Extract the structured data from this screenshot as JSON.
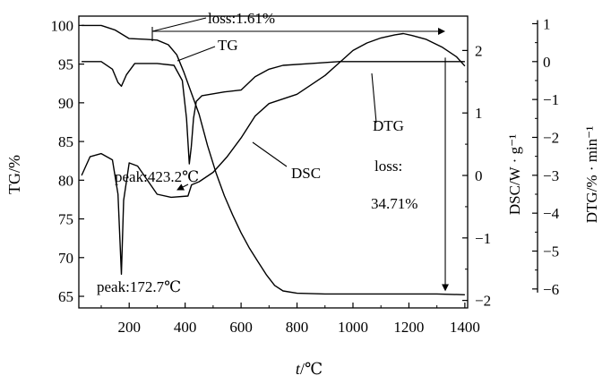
{
  "chart_data": {
    "type": "line",
    "xlabel_var": "t",
    "xlabel_unit": "/℃",
    "x_ticks": [
      200,
      400,
      600,
      800,
      1000,
      1200,
      1400
    ],
    "xlim": [
      20,
      1410
    ],
    "axes": {
      "tg": {
        "label": "TG/%",
        "ticks": [
          65,
          70,
          75,
          80,
          85,
          90,
          95,
          100
        ],
        "ylim": [
          63.5,
          101.2
        ]
      },
      "dsc": {
        "label": "DSC/W · g⁻¹",
        "ticks": [
          -2,
          -1,
          0,
          1,
          2
        ],
        "ylim": [
          -2.12,
          2.55
        ]
      },
      "dtg": {
        "label": "DTG/% · min⁻¹",
        "ticks": [
          -6,
          -5,
          -4,
          -3,
          -2,
          -1,
          0,
          1
        ],
        "ylim": [
          -6.5,
          1.2
        ]
      }
    },
    "series": [
      {
        "name": "TG",
        "axis": "tg",
        "points": [
          [
            30,
            100
          ],
          [
            100,
            100
          ],
          [
            150,
            99.4
          ],
          [
            200,
            98.3
          ],
          [
            260,
            98.2
          ],
          [
            300,
            98.1
          ],
          [
            340,
            97.5
          ],
          [
            370,
            96.2
          ],
          [
            395,
            94
          ],
          [
            420,
            91.5
          ],
          [
            450,
            88.5
          ],
          [
            480,
            84.5
          ],
          [
            510,
            81
          ],
          [
            540,
            78
          ],
          [
            570,
            75.5
          ],
          [
            600,
            73.2
          ],
          [
            630,
            71.2
          ],
          [
            660,
            69.5
          ],
          [
            690,
            67.8
          ],
          [
            720,
            66.4
          ],
          [
            750,
            65.7
          ],
          [
            800,
            65.4
          ],
          [
            900,
            65.3
          ],
          [
            1000,
            65.3
          ],
          [
            1100,
            65.3
          ],
          [
            1200,
            65.3
          ],
          [
            1300,
            65.3
          ],
          [
            1400,
            65.2
          ]
        ]
      },
      {
        "name": "DTG",
        "axis": "dtg",
        "points": [
          [
            30,
            0
          ],
          [
            100,
            0
          ],
          [
            140,
            -0.2
          ],
          [
            160,
            -0.55
          ],
          [
            172,
            -0.65
          ],
          [
            190,
            -0.35
          ],
          [
            220,
            -0.05
          ],
          [
            300,
            -0.05
          ],
          [
            360,
            -0.1
          ],
          [
            390,
            -0.5
          ],
          [
            405,
            -1.5
          ],
          [
            415,
            -2.7
          ],
          [
            422,
            -2.25
          ],
          [
            430,
            -1.5
          ],
          [
            440,
            -1.05
          ],
          [
            460,
            -0.9
          ],
          [
            500,
            -0.85
          ],
          [
            540,
            -0.8
          ],
          [
            600,
            -0.75
          ],
          [
            650,
            -0.4
          ],
          [
            700,
            -0.2
          ],
          [
            750,
            -0.1
          ],
          [
            850,
            -0.05
          ],
          [
            950,
            0
          ],
          [
            1100,
            0
          ],
          [
            1250,
            0
          ],
          [
            1400,
            0
          ]
        ]
      },
      {
        "name": "DSC",
        "axis": "dsc",
        "points": [
          [
            30,
            0.0
          ],
          [
            60,
            0.3
          ],
          [
            100,
            0.35
          ],
          [
            140,
            0.25
          ],
          [
            160,
            -0.3
          ],
          [
            172,
            -1.58
          ],
          [
            180,
            -0.4
          ],
          [
            200,
            0.2
          ],
          [
            230,
            0.15
          ],
          [
            300,
            -0.3
          ],
          [
            350,
            -0.35
          ],
          [
            410,
            -0.33
          ],
          [
            423,
            -0.15
          ],
          [
            450,
            -0.1
          ],
          [
            500,
            0.05
          ],
          [
            550,
            0.3
          ],
          [
            600,
            0.6
          ],
          [
            650,
            0.95
          ],
          [
            700,
            1.15
          ],
          [
            800,
            1.3
          ],
          [
            850,
            1.45
          ],
          [
            900,
            1.6
          ],
          [
            950,
            1.8
          ],
          [
            1000,
            2.0
          ],
          [
            1050,
            2.12
          ],
          [
            1100,
            2.2
          ],
          [
            1150,
            2.25
          ],
          [
            1180,
            2.27
          ],
          [
            1210,
            2.24
          ],
          [
            1260,
            2.18
          ],
          [
            1320,
            2.05
          ],
          [
            1370,
            1.9
          ],
          [
            1400,
            1.75
          ]
        ]
      }
    ],
    "labels": {
      "tg": "TG",
      "dtg": "DTG",
      "dsc": "DSC",
      "loss1": "loss:1.61%",
      "loss2a": "loss:",
      "loss2b": "34.71%",
      "peak1": "peak:423.2℃",
      "peak2": "peak:172.7℃"
    }
  }
}
